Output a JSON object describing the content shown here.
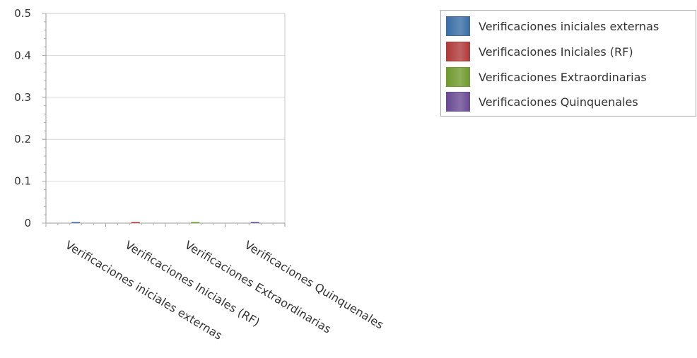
{
  "chart_data": {
    "type": "bar",
    "categories": [
      "Verificaciones iniciales externas",
      "Verificaciones Iniciales (RF)",
      "Verificaciones Extraordinarias",
      "Verificaciones Quinquenales"
    ],
    "series": [
      {
        "name": "Verificaciones iniciales externas",
        "values": [
          0,
          null,
          null,
          null
        ]
      },
      {
        "name": "Verificaciones Iniciales (RF)",
        "values": [
          null,
          0,
          null,
          null
        ]
      },
      {
        "name": "Verificaciones Extraordinarias",
        "values": [
          null,
          null,
          0,
          null
        ]
      },
      {
        "name": "Verificaciones Quinquenales",
        "values": [
          null,
          null,
          null,
          0
        ]
      }
    ],
    "ylim": [
      0,
      0.5
    ],
    "yticks": [
      "0",
      "0.1",
      "0.2",
      "0.3",
      "0.4",
      "0.5"
    ],
    "grid": true,
    "legend_position": "top-right",
    "colors": [
      "#3a6ea5",
      "#b03a3a",
      "#6f9a2e",
      "#6a4a93"
    ]
  },
  "legend": {
    "items": [
      {
        "label": "Verificaciones iniciales externas",
        "color": "#3a6ea5"
      },
      {
        "label": "Verificaciones Iniciales (RF)",
        "color": "#b03a3a"
      },
      {
        "label": "Verificaciones Extraordinarias",
        "color": "#6f9a2e"
      },
      {
        "label": "Verificaciones Quinquenales",
        "color": "#6a4a93"
      }
    ]
  }
}
